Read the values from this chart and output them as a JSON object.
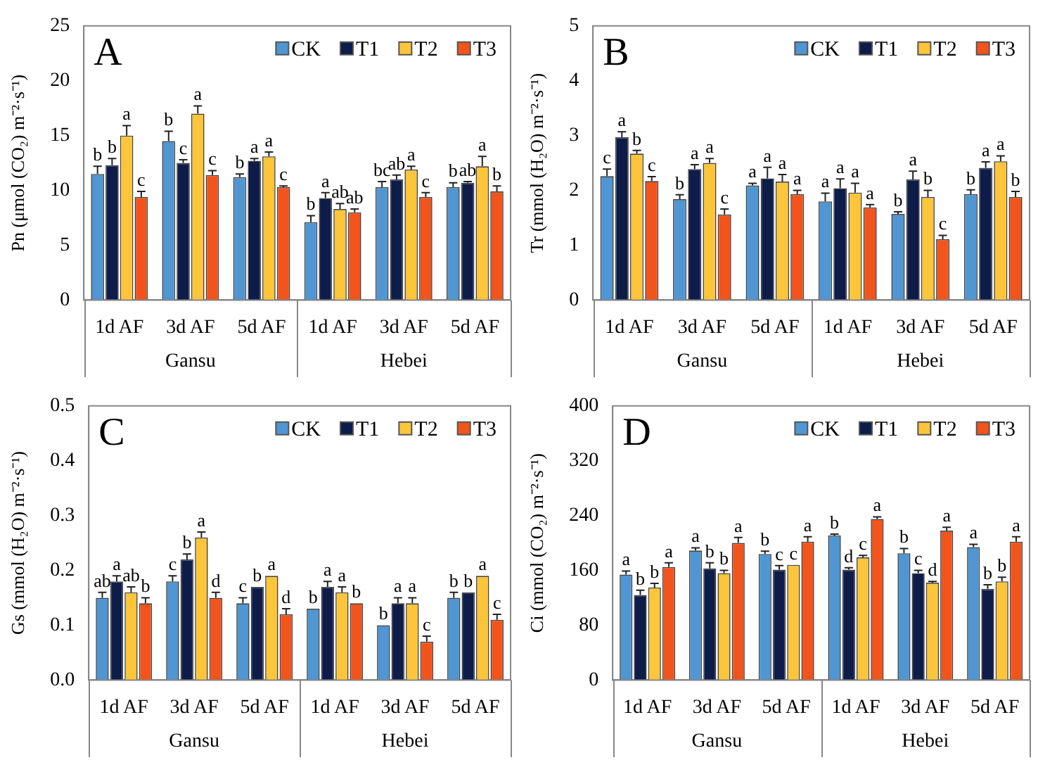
{
  "chart_data": [
    {
      "type": "bar",
      "title": "A",
      "ylabel": "Pn (μmol (CO₂) m⁻²·s⁻¹)",
      "categories": [
        "1d AF",
        "3d AF",
        "5d AF",
        "1d AF",
        "3d AF",
        "5d AF"
      ],
      "ylim": [
        0,
        25
      ],
      "yticks": [
        0,
        5,
        10,
        15,
        20,
        25
      ],
      "legend": "top right",
      "annotations": [
        "Gansu",
        "Hebei"
      ],
      "series": [
        {
          "name": "CK",
          "color": "#4f96d2",
          "values": [
            11.5,
            14.5,
            11.2,
            7.1,
            10.3,
            10.3
          ],
          "errors": [
            [
              11.5,
              12.2
            ],
            [
              14.5,
              15.4
            ],
            [
              11.2,
              11.5
            ],
            [
              7.1,
              7.7
            ],
            [
              10.3,
              10.8
            ],
            [
              10.3,
              10.7
            ]
          ],
          "value_labels": [
            "b",
            "b",
            "b",
            "b",
            "bc",
            "b"
          ]
        },
        {
          "name": "T1",
          "color": "#0e1c4a",
          "values": [
            12.3,
            12.5,
            12.7,
            9.3,
            11.0,
            10.7
          ],
          "errors": [
            [
              12.3,
              12.9
            ],
            [
              12.5,
              12.8
            ],
            [
              12.7,
              12.9
            ],
            [
              9.3,
              9.8
            ],
            [
              11.0,
              11.4
            ],
            [
              10.7,
              10.8
            ]
          ],
          "value_labels": [
            "b",
            "c",
            "a",
            "a",
            "ab",
            "ab"
          ]
        },
        {
          "name": "T2",
          "color": "#fcc53a",
          "values": [
            15.0,
            17.0,
            13.1,
            8.3,
            11.9,
            12.2
          ],
          "errors": [
            [
              15.0,
              15.9
            ],
            [
              17.0,
              17.7
            ],
            [
              13.1,
              13.5
            ],
            [
              8.3,
              8.8
            ],
            [
              11.9,
              12.2
            ],
            [
              12.2,
              13.1
            ]
          ],
          "value_labels": [
            "a",
            "a",
            "a",
            "ab",
            "a",
            "a"
          ]
        },
        {
          "name": "T3",
          "color": "#f2541b",
          "values": [
            9.4,
            11.4,
            10.3,
            8.0,
            9.4,
            9.9
          ],
          "errors": [
            [
              9.4,
              9.9
            ],
            [
              11.4,
              11.8
            ],
            [
              10.3,
              10.4
            ],
            [
              8.0,
              8.3
            ],
            [
              9.4,
              9.8
            ],
            [
              9.9,
              10.4
            ]
          ],
          "value_labels": [
            "c",
            "c",
            "c",
            "ab",
            "c",
            "b"
          ]
        }
      ]
    },
    {
      "type": "bar",
      "title": "B",
      "ylabel": "Tr (mmol (H₂O) m⁻²·s⁻¹)",
      "categories": [
        "1d AF",
        "3d AF",
        "5d AF",
        "1d AF",
        "3d AF",
        "5d AF"
      ],
      "ylim": [
        0,
        5
      ],
      "yticks": [
        0,
        1,
        2,
        3,
        4,
        5
      ],
      "legend": "top right",
      "annotations": [
        "Gansu",
        "Hebei"
      ],
      "series": [
        {
          "name": "CK",
          "color": "#4f96d2",
          "values": [
            2.26,
            1.84,
            2.09,
            1.8,
            1.57,
            1.93
          ],
          "errors": [
            [
              2.26,
              2.39
            ],
            [
              1.84,
              1.92
            ],
            [
              2.09,
              2.13
            ],
            [
              1.8,
              1.95
            ],
            [
              1.57,
              1.61
            ],
            [
              1.93,
              2.01
            ]
          ],
          "value_labels": [
            "c",
            "b",
            "a",
            "a",
            "b",
            "b"
          ]
        },
        {
          "name": "T1",
          "color": "#0e1c4a",
          "values": [
            2.97,
            2.39,
            2.22,
            2.04,
            2.2,
            2.41
          ],
          "errors": [
            [
              2.97,
              3.07
            ],
            [
              2.39,
              2.47
            ],
            [
              2.22,
              2.42
            ],
            [
              2.04,
              2.21
            ],
            [
              2.2,
              2.35
            ],
            [
              2.41,
              2.52
            ]
          ],
          "value_labels": [
            "a",
            "a",
            "a",
            "a",
            "a",
            "a"
          ]
        },
        {
          "name": "T2",
          "color": "#fcc53a",
          "values": [
            2.67,
            2.5,
            2.16,
            1.96,
            1.88,
            2.53
          ],
          "errors": [
            [
              2.67,
              2.73
            ],
            [
              2.5,
              2.58
            ],
            [
              2.16,
              2.29
            ],
            [
              1.96,
              2.13
            ],
            [
              1.88,
              2.0
            ],
            [
              2.53,
              2.63
            ]
          ],
          "value_labels": [
            "b",
            "a",
            "a",
            "a",
            "b",
            "a"
          ]
        },
        {
          "name": "T3",
          "color": "#f2541b",
          "values": [
            2.17,
            1.56,
            1.93,
            1.69,
            1.11,
            1.88
          ],
          "errors": [
            [
              2.17,
              2.25
            ],
            [
              1.56,
              1.66
            ],
            [
              1.93,
              2.0
            ],
            [
              1.69,
              1.74
            ],
            [
              1.11,
              1.18
            ],
            [
              1.88,
              1.98
            ]
          ],
          "value_labels": [
            "c",
            "c",
            "a",
            "a",
            "c",
            "b"
          ]
        }
      ]
    },
    {
      "type": "bar",
      "title": "C",
      "ylabel": "Gs (mmol (H₂O) m⁻²·s⁻¹)",
      "categories": [
        "1d AF",
        "3d AF",
        "5d AF",
        "1d AF",
        "3d AF",
        "5d AF"
      ],
      "ylim": [
        0,
        0.5
      ],
      "yticks": [
        {
          "value": 0,
          "label": "0.0"
        },
        {
          "value": 0.1,
          "label": "0.1"
        },
        {
          "value": 0.2,
          "label": "0.2"
        },
        {
          "value": 0.3,
          "label": "0.3"
        },
        {
          "value": 0.4,
          "label": "0.4"
        },
        {
          "value": 0.5,
          "label": "0.5"
        }
      ],
      "legend": "top right",
      "annotations": [
        "Gansu",
        "Hebei"
      ],
      "series": [
        {
          "name": "CK",
          "color": "#4f96d2",
          "values": [
            0.15,
            0.18,
            0.14,
            0.13,
            0.1,
            0.15
          ],
          "errors": [
            [
              0.15,
              0.16
            ],
            [
              0.18,
              0.19
            ],
            [
              0.14,
              0.15
            ],
            null,
            null,
            [
              0.15,
              0.16
            ]
          ],
          "value_labels": [
            "ab",
            "c",
            "c",
            "b",
            "b",
            "b"
          ]
        },
        {
          "name": "T1",
          "color": "#0e1c4a",
          "values": [
            0.18,
            0.22,
            0.17,
            0.17,
            0.14,
            0.16
          ],
          "errors": [
            [
              0.18,
              0.19
            ],
            [
              0.22,
              0.23
            ],
            null,
            [
              0.17,
              0.18
            ],
            [
              0.14,
              0.15
            ],
            null
          ],
          "value_labels": [
            "a",
            "b",
            "b",
            "a",
            "a",
            "b"
          ]
        },
        {
          "name": "T2",
          "color": "#fcc53a",
          "values": [
            0.16,
            0.26,
            0.19,
            0.16,
            0.14,
            0.19
          ],
          "errors": [
            [
              0.16,
              0.17
            ],
            [
              0.26,
              0.27
            ],
            null,
            [
              0.16,
              0.17
            ],
            [
              0.14,
              0.15
            ],
            null
          ],
          "value_labels": [
            "ab",
            "a",
            "a",
            "a",
            "a",
            "a"
          ]
        },
        {
          "name": "T3",
          "color": "#f2541b",
          "values": [
            0.14,
            0.15,
            0.12,
            0.14,
            0.07,
            0.11
          ],
          "errors": [
            [
              0.14,
              0.15
            ],
            [
              0.15,
              0.16
            ],
            [
              0.12,
              0.13
            ],
            null,
            [
              0.07,
              0.08
            ],
            [
              0.11,
              0.12
            ]
          ],
          "value_labels": [
            "b",
            "d",
            "d",
            "b",
            "c",
            "c"
          ]
        }
      ]
    },
    {
      "type": "bar",
      "title": "D",
      "ylabel": "Ci (mmol (CO₂) m⁻²·s⁻¹)",
      "categories": [
        "1d AF",
        "3d AF",
        "5d AF",
        "1d AF",
        "3d AF",
        "5d AF"
      ],
      "ylim": [
        0,
        400
      ],
      "yticks": [
        0,
        80,
        160,
        240,
        320,
        400
      ],
      "legend": "top right",
      "annotations": [
        "Gansu",
        "Hebei"
      ],
      "series": [
        {
          "name": "CK",
          "color": "#4f96d2",
          "values": [
            154,
            189,
            184,
            211,
            185,
            194
          ],
          "errors": [
            [
              154,
              159
            ],
            [
              189,
              193
            ],
            [
              184,
              188
            ],
            [
              211,
              213
            ],
            [
              185,
              192
            ],
            [
              194,
              198
            ]
          ],
          "value_labels": [
            "a",
            "a",
            "b",
            "b",
            "b",
            "a"
          ]
        },
        {
          "name": "T1",
          "color": "#0e1c4a",
          "values": [
            124,
            163,
            161,
            161,
            156,
            133
          ],
          "errors": [
            [
              124,
              131
            ],
            [
              163,
              171
            ],
            [
              161,
              167
            ],
            [
              161,
              164
            ],
            [
              156,
              160
            ],
            [
              133,
              139
            ]
          ],
          "value_labels": [
            "b",
            "b",
            "c",
            "d",
            "c",
            "b"
          ]
        },
        {
          "name": "T2",
          "color": "#fcc53a",
          "values": [
            135,
            156,
            168,
            179,
            142,
            144
          ],
          "errors": [
            [
              135,
              141
            ],
            [
              156,
              160
            ],
            null,
            [
              179,
              182
            ],
            [
              142,
              144
            ],
            [
              144,
              150
            ]
          ],
          "value_labels": [
            "b",
            "b",
            "c",
            "c",
            "d",
            "b"
          ]
        },
        {
          "name": "T3",
          "color": "#f2541b",
          "values": [
            165,
            200,
            202,
            235,
            218,
            202
          ],
          "errors": [
            [
              165,
              171
            ],
            [
              200,
              208
            ],
            [
              202,
              209
            ],
            [
              235,
              238
            ],
            [
              218,
              223
            ],
            [
              202,
              209
            ]
          ],
          "value_labels": [
            "a",
            "a",
            "a",
            "a",
            "a",
            "a"
          ]
        }
      ]
    }
  ]
}
